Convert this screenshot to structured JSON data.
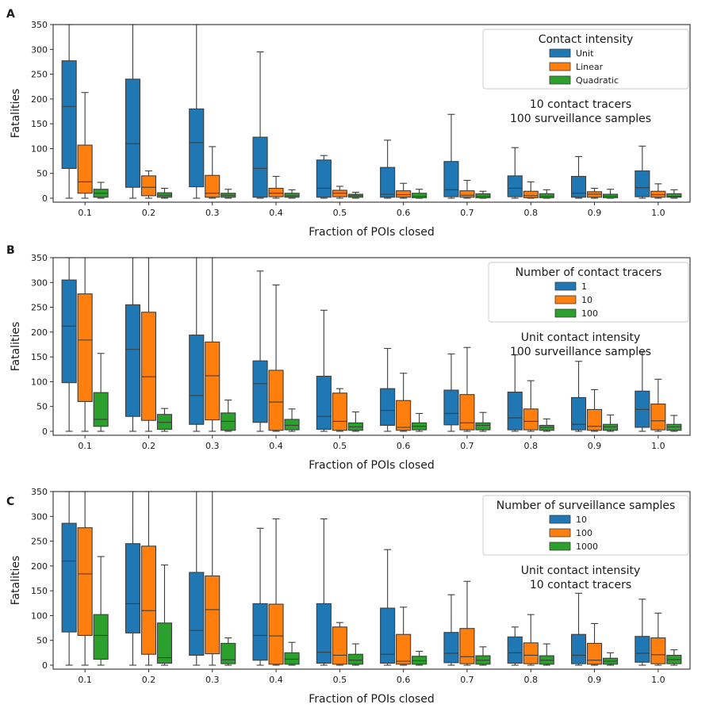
{
  "chart_data": [
    {
      "type": "box",
      "panel_label": "A",
      "xlabel": "Fraction of POIs closed",
      "ylabel": "Fatalities",
      "ylim": [
        -8,
        350
      ],
      "yticks": [
        0,
        50,
        100,
        150,
        200,
        250,
        300,
        350
      ],
      "categories": [
        "0.1",
        "0.2",
        "0.3",
        "0.4",
        "0.5",
        "0.6",
        "0.7",
        "0.8",
        "0.9",
        "1.0"
      ],
      "legend": {
        "title": "Contact intensity",
        "position": "top-right"
      },
      "annotation": [
        "10 contact tracers",
        "100 surveillance samples"
      ],
      "series": [
        {
          "name": "Unit",
          "color": "#1f77b4",
          "boxes": [
            {
              "whislo": 0,
              "q1": 60,
              "med": 185,
              "q3": 277,
              "whishi": 350
            },
            {
              "whislo": 0,
              "q1": 22,
              "med": 110,
              "q3": 240,
              "whishi": 350
            },
            {
              "whislo": 0,
              "q1": 23,
              "med": 112,
              "q3": 180,
              "whishi": 350
            },
            {
              "whislo": 0,
              "q1": 2,
              "med": 60,
              "q3": 123,
              "whishi": 295
            },
            {
              "whislo": 0,
              "q1": 2,
              "med": 20,
              "q3": 77,
              "whishi": 86
            },
            {
              "whislo": 0,
              "q1": 2,
              "med": 8,
              "q3": 62,
              "whishi": 117
            },
            {
              "whislo": 0,
              "q1": 3,
              "med": 17,
              "q3": 74,
              "whishi": 169
            },
            {
              "whislo": 0,
              "q1": 3,
              "med": 20,
              "q3": 45,
              "whishi": 102
            },
            {
              "whislo": 0,
              "q1": 2,
              "med": 10,
              "q3": 44,
              "whishi": 84
            },
            {
              "whislo": 0,
              "q1": 3,
              "med": 21,
              "q3": 55,
              "whishi": 105
            }
          ]
        },
        {
          "name": "Linear",
          "color": "#ff7f0e",
          "boxes": [
            {
              "whislo": 0,
              "q1": 10,
              "med": 33,
              "q3": 107,
              "whishi": 213
            },
            {
              "whislo": 0,
              "q1": 5,
              "med": 22,
              "q3": 45,
              "whishi": 55
            },
            {
              "whislo": 0,
              "q1": 2,
              "med": 10,
              "q3": 46,
              "whishi": 104
            },
            {
              "whislo": 0,
              "q1": 3,
              "med": 10,
              "q3": 20,
              "whishi": 44
            },
            {
              "whislo": 0,
              "q1": 3,
              "med": 10,
              "q3": 16,
              "whishi": 24
            },
            {
              "whislo": 0,
              "q1": 2,
              "med": 7,
              "q3": 15,
              "whishi": 30
            },
            {
              "whislo": 0,
              "q1": 2,
              "med": 6,
              "q3": 15,
              "whishi": 36
            },
            {
              "whislo": 0,
              "q1": 1,
              "med": 5,
              "q3": 14,
              "whishi": 33
            },
            {
              "whislo": 0,
              "q1": 2,
              "med": 8,
              "q3": 13,
              "whishi": 20
            },
            {
              "whislo": 0,
              "q1": 2,
              "med": 7,
              "q3": 14,
              "whishi": 29
            }
          ]
        },
        {
          "name": "Quadratic",
          "color": "#2ca02c",
          "boxes": [
            {
              "whislo": 0,
              "q1": 2,
              "med": 10,
              "q3": 18,
              "whishi": 32
            },
            {
              "whislo": 0,
              "q1": 2,
              "med": 6,
              "q3": 11,
              "whishi": 20
            },
            {
              "whislo": 0,
              "q1": 2,
              "med": 6,
              "q3": 10,
              "whishi": 18
            },
            {
              "whislo": 0,
              "q1": 2,
              "med": 5,
              "q3": 10,
              "whishi": 17
            },
            {
              "whislo": 0,
              "q1": 2,
              "med": 5,
              "q3": 8,
              "whishi": 12
            },
            {
              "whislo": 0,
              "q1": 1,
              "med": 4,
              "q3": 10,
              "whishi": 18
            },
            {
              "whislo": 0,
              "q1": 1,
              "med": 4,
              "q3": 9,
              "whishi": 14
            },
            {
              "whislo": 0,
              "q1": 1,
              "med": 4,
              "q3": 9,
              "whishi": 17
            },
            {
              "whislo": 0,
              "q1": 1,
              "med": 4,
              "q3": 8,
              "whishi": 18
            },
            {
              "whislo": 0,
              "q1": 2,
              "med": 4,
              "q3": 9,
              "whishi": 17
            }
          ]
        }
      ]
    },
    {
      "type": "box",
      "panel_label": "B",
      "xlabel": "Fraction of POIs closed",
      "ylabel": "Fatalities",
      "ylim": [
        -8,
        350
      ],
      "yticks": [
        0,
        50,
        100,
        150,
        200,
        250,
        300,
        350
      ],
      "categories": [
        "0.1",
        "0.2",
        "0.3",
        "0.4",
        "0.5",
        "0.6",
        "0.7",
        "0.8",
        "0.9",
        "1.0"
      ],
      "legend": {
        "title": "Number of contact tracers",
        "position": "top-right"
      },
      "annotation": [
        "Unit contact intensity",
        "100 surveillance samples"
      ],
      "series": [
        {
          "name": "1",
          "color": "#1f77b4",
          "boxes": [
            {
              "whislo": 0,
              "q1": 98,
              "med": 212,
              "q3": 305,
              "whishi": 350
            },
            {
              "whislo": 0,
              "q1": 30,
              "med": 165,
              "q3": 255,
              "whishi": 350
            },
            {
              "whislo": 0,
              "q1": 14,
              "med": 72,
              "q3": 194,
              "whishi": 350
            },
            {
              "whislo": 0,
              "q1": 18,
              "med": 96,
              "q3": 142,
              "whishi": 323
            },
            {
              "whislo": 0,
              "q1": 4,
              "med": 30,
              "q3": 111,
              "whishi": 244
            },
            {
              "whislo": 0,
              "q1": 12,
              "med": 42,
              "q3": 86,
              "whishi": 167
            },
            {
              "whislo": 0,
              "q1": 13,
              "med": 36,
              "q3": 83,
              "whishi": 156
            },
            {
              "whislo": 0,
              "q1": 3,
              "med": 27,
              "q3": 79,
              "whishi": 154
            },
            {
              "whislo": 0,
              "q1": 3,
              "med": 14,
              "q3": 68,
              "whishi": 141
            },
            {
              "whislo": 0,
              "q1": 8,
              "med": 44,
              "q3": 81,
              "whishi": 160
            }
          ]
        },
        {
          "name": "10",
          "color": "#ff7f0e",
          "boxes": [
            {
              "whislo": 0,
              "q1": 60,
              "med": 184,
              "q3": 277,
              "whishi": 350
            },
            {
              "whislo": 0,
              "q1": 22,
              "med": 110,
              "q3": 240,
              "whishi": 350
            },
            {
              "whislo": 0,
              "q1": 23,
              "med": 112,
              "q3": 180,
              "whishi": 350
            },
            {
              "whislo": 0,
              "q1": 2,
              "med": 59,
              "q3": 123,
              "whishi": 295
            },
            {
              "whislo": 0,
              "q1": 2,
              "med": 20,
              "q3": 77,
              "whishi": 86
            },
            {
              "whislo": 0,
              "q1": 2,
              "med": 8,
              "q3": 62,
              "whishi": 117
            },
            {
              "whislo": 0,
              "q1": 3,
              "med": 17,
              "q3": 74,
              "whishi": 169
            },
            {
              "whislo": 0,
              "q1": 3,
              "med": 20,
              "q3": 45,
              "whishi": 102
            },
            {
              "whislo": 0,
              "q1": 2,
              "med": 10,
              "q3": 44,
              "whishi": 84
            },
            {
              "whislo": 0,
              "q1": 3,
              "med": 21,
              "q3": 55,
              "whishi": 105
            }
          ]
        },
        {
          "name": "100",
          "color": "#2ca02c",
          "boxes": [
            {
              "whislo": 0,
              "q1": 10,
              "med": 24,
              "q3": 78,
              "whishi": 157
            },
            {
              "whislo": 0,
              "q1": 4,
              "med": 18,
              "q3": 34,
              "whishi": 46
            },
            {
              "whislo": 0,
              "q1": 2,
              "med": 20,
              "q3": 37,
              "whishi": 63
            },
            {
              "whislo": 0,
              "q1": 3,
              "med": 12,
              "q3": 24,
              "whishi": 45
            },
            {
              "whislo": 0,
              "q1": 2,
              "med": 9,
              "q3": 17,
              "whishi": 39
            },
            {
              "whislo": 0,
              "q1": 3,
              "med": 10,
              "q3": 17,
              "whishi": 36
            },
            {
              "whislo": 0,
              "q1": 3,
              "med": 12,
              "q3": 17,
              "whishi": 38
            },
            {
              "whislo": 0,
              "q1": 2,
              "med": 8,
              "q3": 12,
              "whishi": 25
            },
            {
              "whislo": 0,
              "q1": 2,
              "med": 9,
              "q3": 14,
              "whishi": 33
            },
            {
              "whislo": 0,
              "q1": 2,
              "med": 9,
              "q3": 14,
              "whishi": 32
            }
          ]
        }
      ]
    },
    {
      "type": "box",
      "panel_label": "C",
      "xlabel": "Fraction of POIs closed",
      "ylabel": "Fatalities",
      "ylim": [
        -8,
        350
      ],
      "yticks": [
        0,
        50,
        100,
        150,
        200,
        250,
        300,
        350
      ],
      "categories": [
        "0.1",
        "0.2",
        "0.3",
        "0.4",
        "0.5",
        "0.6",
        "0.7",
        "0.8",
        "0.9",
        "1.0"
      ],
      "legend": {
        "title": "Number of surveillance samples",
        "position": "top-right"
      },
      "annotation": [
        "Unit contact intensity",
        "10 contact tracers"
      ],
      "series": [
        {
          "name": "10",
          "color": "#1f77b4",
          "boxes": [
            {
              "whislo": 0,
              "q1": 67,
              "med": 210,
              "q3": 286,
              "whishi": 350
            },
            {
              "whislo": 0,
              "q1": 65,
              "med": 124,
              "q3": 245,
              "whishi": 350
            },
            {
              "whislo": 0,
              "q1": 20,
              "med": 70,
              "q3": 187,
              "whishi": 350
            },
            {
              "whislo": 0,
              "q1": 10,
              "med": 60,
              "q3": 124,
              "whishi": 276
            },
            {
              "whislo": 0,
              "q1": 4,
              "med": 26,
              "q3": 124,
              "whishi": 295
            },
            {
              "whislo": 0,
              "q1": 4,
              "med": 22,
              "q3": 115,
              "whishi": 233
            },
            {
              "whislo": 0,
              "q1": 5,
              "med": 24,
              "q3": 66,
              "whishi": 142
            },
            {
              "whislo": 0,
              "q1": 4,
              "med": 25,
              "q3": 57,
              "whishi": 77
            },
            {
              "whislo": 0,
              "q1": 3,
              "med": 20,
              "q3": 62,
              "whishi": 145
            },
            {
              "whislo": 0,
              "q1": 6,
              "med": 24,
              "q3": 58,
              "whishi": 133
            }
          ]
        },
        {
          "name": "100",
          "color": "#ff7f0e",
          "boxes": [
            {
              "whislo": 0,
              "q1": 60,
              "med": 184,
              "q3": 277,
              "whishi": 350
            },
            {
              "whislo": 0,
              "q1": 22,
              "med": 110,
              "q3": 240,
              "whishi": 350
            },
            {
              "whislo": 0,
              "q1": 23,
              "med": 112,
              "q3": 180,
              "whishi": 350
            },
            {
              "whislo": 0,
              "q1": 2,
              "med": 59,
              "q3": 123,
              "whishi": 295
            },
            {
              "whislo": 0,
              "q1": 2,
              "med": 20,
              "q3": 77,
              "whishi": 86
            },
            {
              "whislo": 0,
              "q1": 2,
              "med": 8,
              "q3": 62,
              "whishi": 117
            },
            {
              "whislo": 0,
              "q1": 3,
              "med": 17,
              "q3": 74,
              "whishi": 169
            },
            {
              "whislo": 0,
              "q1": 3,
              "med": 20,
              "q3": 45,
              "whishi": 102
            },
            {
              "whislo": 0,
              "q1": 2,
              "med": 10,
              "q3": 44,
              "whishi": 84
            },
            {
              "whislo": 0,
              "q1": 3,
              "med": 21,
              "q3": 55,
              "whishi": 105
            }
          ]
        },
        {
          "name": "1000",
          "color": "#2ca02c",
          "boxes": [
            {
              "whislo": 0,
              "q1": 12,
              "med": 60,
              "q3": 102,
              "whishi": 219
            },
            {
              "whislo": 0,
              "q1": 4,
              "med": 15,
              "q3": 85,
              "whishi": 202
            },
            {
              "whislo": 0,
              "q1": 3,
              "med": 11,
              "q3": 44,
              "whishi": 55
            },
            {
              "whislo": 0,
              "q1": 2,
              "med": 12,
              "q3": 25,
              "whishi": 46
            },
            {
              "whislo": 0,
              "q1": 2,
              "med": 10,
              "q3": 22,
              "whishi": 43
            },
            {
              "whislo": 0,
              "q1": 2,
              "med": 9,
              "q3": 18,
              "whishi": 28
            },
            {
              "whislo": 0,
              "q1": 2,
              "med": 10,
              "q3": 19,
              "whishi": 37
            },
            {
              "whislo": 0,
              "q1": 2,
              "med": 10,
              "q3": 19,
              "whishi": 43
            },
            {
              "whislo": 0,
              "q1": 2,
              "med": 8,
              "q3": 14,
              "whishi": 25
            },
            {
              "whislo": 0,
              "q1": 3,
              "med": 11,
              "q3": 20,
              "whishi": 31
            }
          ]
        }
      ]
    }
  ]
}
